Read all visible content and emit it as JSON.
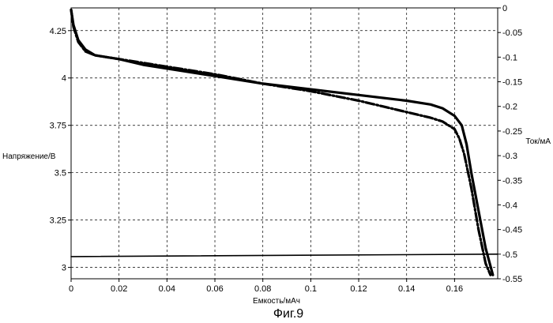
{
  "chart_data": {
    "type": "line",
    "caption": "Фиг.9",
    "xlabel": "Емкость/мАч",
    "ylabel_left": "Напряжение/В",
    "ylabel_right": "Ток/мА",
    "xlim": [
      0,
      0.178
    ],
    "ylim_left": [
      2.94,
      4.37
    ],
    "ylim_right": [
      -0.55,
      0
    ],
    "x_ticks": [
      "0",
      "0.02",
      "0.04",
      "0.06",
      "0.08",
      "0.1",
      "0.12",
      "0.14",
      "0.16"
    ],
    "x_tick_values": [
      0,
      0.02,
      0.04,
      0.06,
      0.08,
      0.1,
      0.12,
      0.14,
      0.16
    ],
    "y_left_ticks": [
      "3",
      "3.25",
      "3.5",
      "3.75",
      "4",
      "4.25"
    ],
    "y_left_tick_values": [
      3,
      3.25,
      3.5,
      3.75,
      4,
      4.25
    ],
    "y_right_ticks": [
      "0",
      "-0.05",
      "-0.1",
      "-0.15",
      "-0.2",
      "-0.25",
      "-0.3",
      "-0.35",
      "-0.4",
      "-0.45",
      "-0.5",
      "-0.55"
    ],
    "y_right_tick_values": [
      0,
      -0.05,
      -0.1,
      -0.15,
      -0.2,
      -0.25,
      -0.3,
      -0.35,
      -0.4,
      -0.45,
      -0.5,
      -0.55
    ],
    "grid": true,
    "series": [
      {
        "style": "solid-thick",
        "axis": "left",
        "x": [
          0,
          0.001,
          0.003,
          0.006,
          0.01,
          0.015,
          0.02,
          0.03,
          0.04,
          0.06,
          0.08,
          0.1,
          0.12,
          0.14,
          0.15,
          0.155,
          0.16,
          0.163,
          0.165,
          0.167,
          0.17,
          0.173,
          0.176
        ],
        "y": [
          4.36,
          4.28,
          4.2,
          4.15,
          4.12,
          4.11,
          4.1,
          4.07,
          4.05,
          4.01,
          3.97,
          3.94,
          3.91,
          3.88,
          3.86,
          3.84,
          3.8,
          3.75,
          3.65,
          3.5,
          3.3,
          3.1,
          2.96
        ]
      },
      {
        "style": "dash-dot-thick",
        "axis": "left",
        "x": [
          0,
          0.001,
          0.003,
          0.006,
          0.01,
          0.015,
          0.02,
          0.03,
          0.04,
          0.06,
          0.08,
          0.1,
          0.12,
          0.13,
          0.14,
          0.15,
          0.155,
          0.16,
          0.162,
          0.164,
          0.167,
          0.17,
          0.173,
          0.175
        ],
        "y": [
          4.36,
          4.27,
          4.19,
          4.14,
          4.12,
          4.11,
          4.1,
          4.08,
          4.06,
          4.02,
          3.97,
          3.93,
          3.88,
          3.85,
          3.82,
          3.79,
          3.77,
          3.73,
          3.68,
          3.6,
          3.42,
          3.2,
          3.02,
          2.96
        ]
      },
      {
        "style": "solid-thin",
        "axis": "right",
        "x": [
          0,
          0.178
        ],
        "y": [
          -0.505,
          -0.5
        ]
      }
    ]
  }
}
